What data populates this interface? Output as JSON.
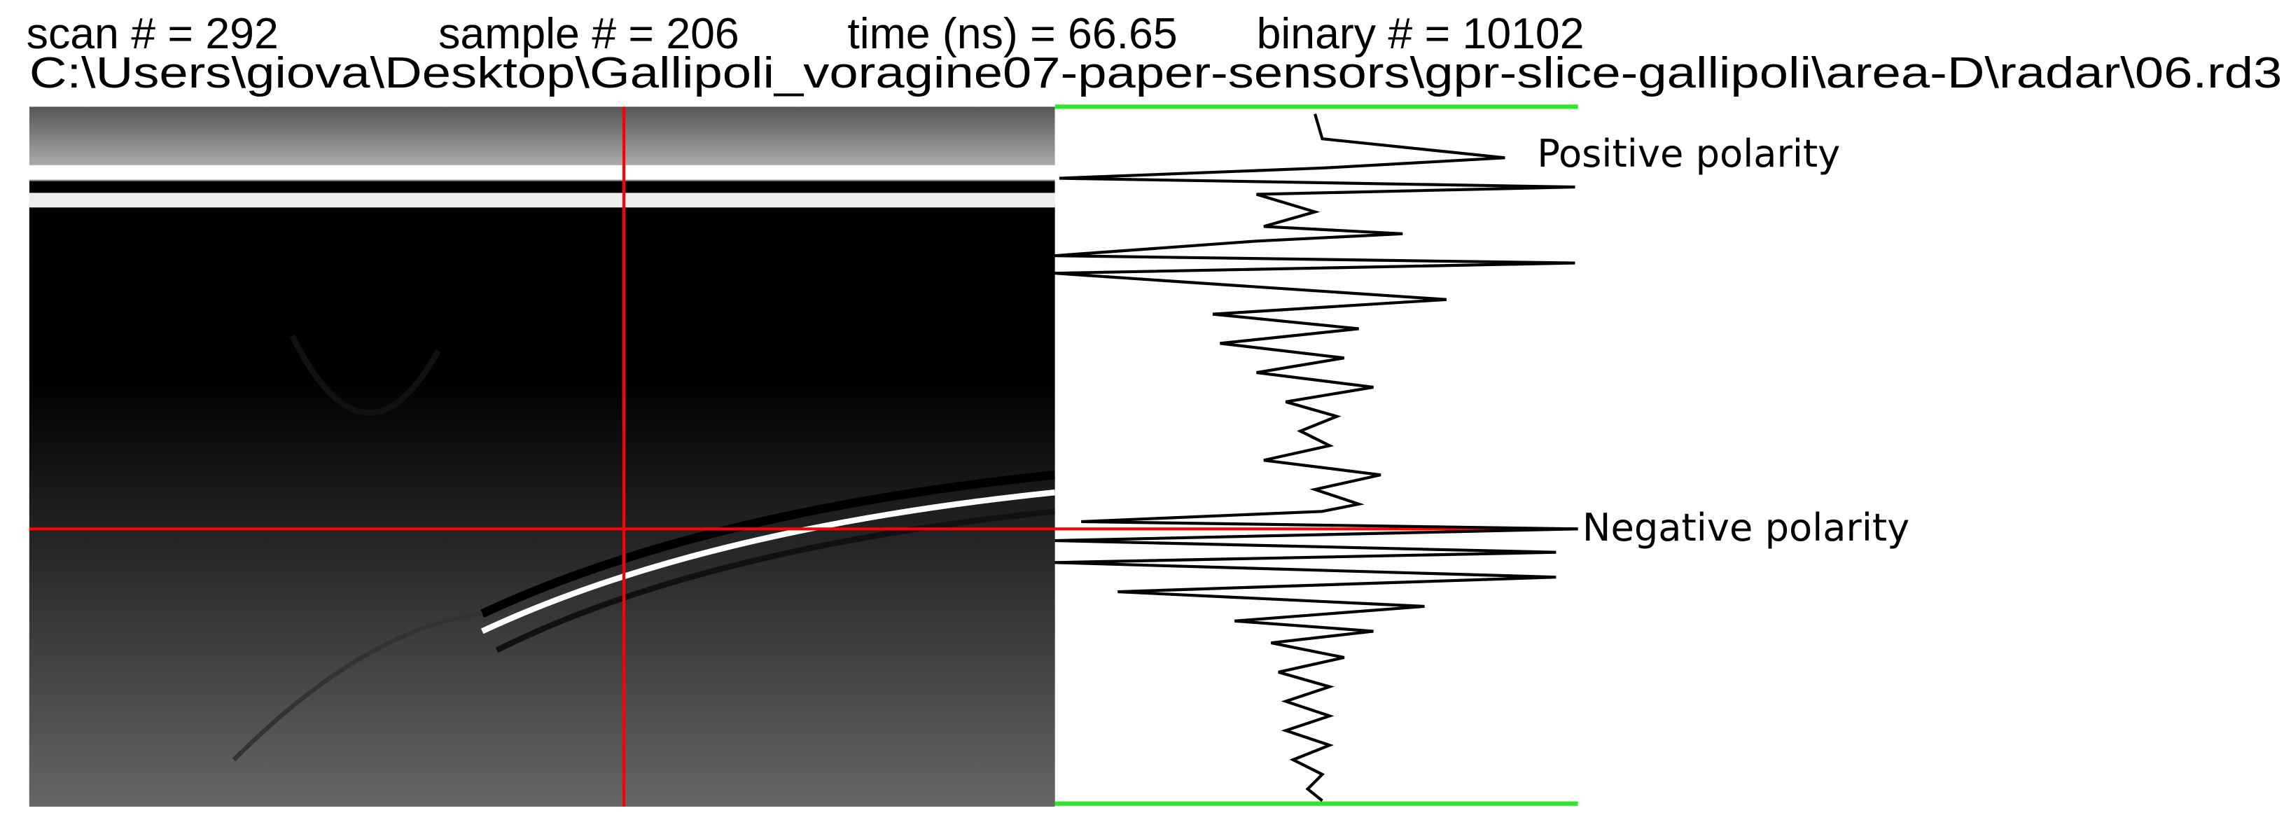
{
  "header": {
    "scan": "scan # =  292",
    "sample": "sample # =  206",
    "time": "time (ns) = 66.65",
    "binary": "binary # = 10102",
    "file_path": "C:\\Users\\giova\\Desktop\\Gallipoli_voragine07-paper-sensors\\gpr-slice-gallipoli\\area-D\\radar\\06.rd3"
  },
  "annotations": {
    "positive": "Positive polarity",
    "negative": "Negative polarity"
  }
}
